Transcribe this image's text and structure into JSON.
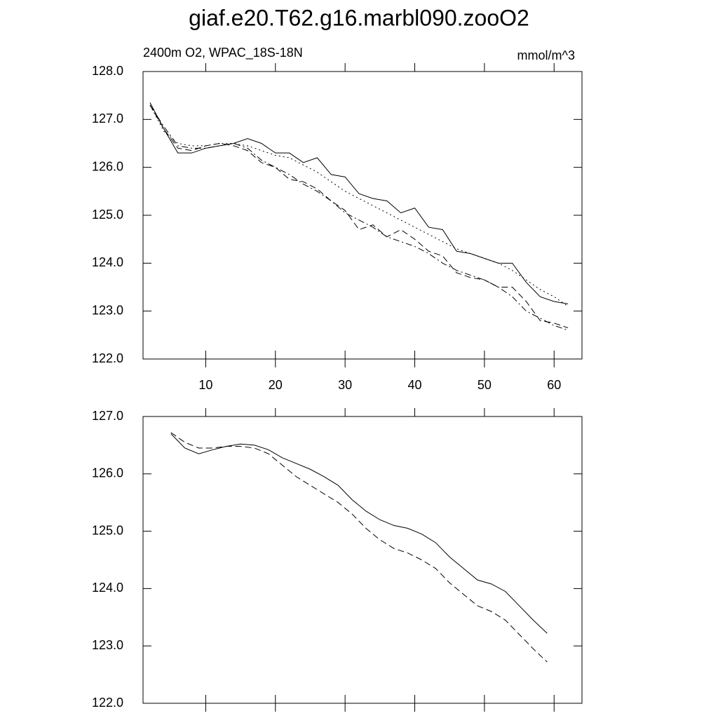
{
  "chart_data": [
    {
      "type": "line",
      "title": "giaf.e20.T62.g16.marbl090.zooO2",
      "subtitle_left": "2400m O2, WPAC_18S-18N",
      "subtitle_right": "mmol/m^3",
      "x": [
        2,
        4,
        6,
        8,
        10,
        12,
        14,
        16,
        18,
        20,
        22,
        24,
        26,
        28,
        30,
        32,
        34,
        36,
        38,
        40,
        42,
        44,
        46,
        48,
        50,
        52,
        54,
        56,
        58,
        60,
        62
      ],
      "series": [
        {
          "color": "#000000",
          "dash": "solid",
          "values": [
            127.35,
            126.8,
            126.3,
            126.3,
            126.4,
            126.45,
            126.5,
            126.6,
            126.5,
            126.3,
            126.3,
            126.1,
            126.2,
            125.85,
            125.8,
            125.45,
            125.35,
            125.3,
            125.05,
            125.15,
            124.75,
            124.7,
            124.25,
            124.2,
            124.1,
            124.0,
            124.0,
            123.6,
            123.3,
            123.2,
            123.15
          ]
        },
        {
          "color": "#000000",
          "dash": "dotted",
          "values": [
            127.3,
            126.75,
            126.5,
            126.45,
            126.45,
            126.5,
            126.5,
            126.45,
            126.35,
            126.25,
            126.2,
            126.05,
            125.9,
            125.7,
            125.5,
            125.35,
            125.2,
            125.05,
            124.9,
            124.75,
            124.6,
            124.45,
            124.3,
            124.2,
            124.1,
            124.0,
            123.85,
            123.65,
            123.45,
            123.3,
            123.1
          ]
        },
        {
          "color": "#000000",
          "dash": "dashed",
          "values": [
            127.3,
            126.8,
            126.4,
            126.35,
            126.45,
            126.5,
            126.45,
            126.35,
            126.1,
            126.0,
            125.75,
            125.7,
            125.55,
            125.3,
            125.1,
            124.7,
            124.8,
            124.55,
            124.7,
            124.5,
            124.25,
            124.15,
            123.8,
            123.7,
            123.65,
            123.5,
            123.5,
            123.2,
            122.8,
            122.75,
            122.65
          ]
        },
        {
          "color": "#000000",
          "dash": "dashdot",
          "values": [
            127.3,
            126.85,
            126.45,
            126.4,
            126.4,
            126.45,
            126.5,
            126.4,
            126.15,
            126.0,
            125.85,
            125.65,
            125.5,
            125.3,
            125.05,
            124.9,
            124.75,
            124.55,
            124.45,
            124.35,
            124.2,
            124.0,
            123.85,
            123.75,
            123.65,
            123.5,
            123.3,
            123.0,
            122.85,
            122.7,
            122.6
          ]
        }
      ],
      "xlim": [
        1,
        64
      ],
      "xticks": [
        10,
        20,
        30,
        40,
        50,
        60
      ],
      "show_xtick_labels": true,
      "ylim": [
        122,
        128
      ],
      "yticks": [
        {
          "value": 122,
          "label": "122.0"
        },
        {
          "value": 123,
          "label": "123.0"
        },
        {
          "value": 124,
          "label": "124.0"
        },
        {
          "value": 125,
          "label": "125.0"
        },
        {
          "value": 126,
          "label": "126.0"
        },
        {
          "value": 127,
          "label": "127.0"
        },
        {
          "value": 128,
          "label": "128.0"
        }
      ]
    },
    {
      "type": "line",
      "x": [
        5,
        7,
        9,
        11,
        13,
        15,
        17,
        19,
        21,
        23,
        25,
        27,
        29,
        31,
        33,
        35,
        37,
        39,
        41,
        43,
        45,
        47,
        49,
        51,
        53,
        55,
        57,
        59
      ],
      "series": [
        {
          "color": "#000000",
          "dash": "solid",
          "values": [
            126.7,
            126.45,
            126.35,
            126.42,
            126.48,
            126.52,
            126.5,
            126.42,
            126.28,
            126.18,
            126.08,
            125.95,
            125.8,
            125.55,
            125.35,
            125.2,
            125.1,
            125.05,
            124.95,
            124.8,
            124.55,
            124.35,
            124.15,
            124.08,
            123.95,
            123.7,
            123.45,
            123.22
          ]
        },
        {
          "color": "#000000",
          "dash": "dashed",
          "values": [
            126.72,
            126.55,
            126.45,
            126.45,
            126.48,
            126.48,
            126.45,
            126.35,
            126.15,
            125.95,
            125.8,
            125.65,
            125.5,
            125.3,
            125.05,
            124.85,
            124.7,
            124.62,
            124.5,
            124.35,
            124.1,
            123.9,
            123.7,
            123.6,
            123.45,
            123.2,
            122.95,
            122.72
          ]
        }
      ],
      "xlim": [
        1,
        64
      ],
      "xticks": [
        10,
        20,
        30,
        40,
        50,
        60
      ],
      "show_xtick_labels": false,
      "ylim": [
        122,
        127
      ],
      "yticks": [
        {
          "value": 122,
          "label": "122.0"
        },
        {
          "value": 123,
          "label": "123.0"
        },
        {
          "value": 124,
          "label": "124.0"
        },
        {
          "value": 125,
          "label": "125.0"
        },
        {
          "value": 126,
          "label": "126.0"
        },
        {
          "value": 127,
          "label": "127.0"
        }
      ]
    }
  ]
}
